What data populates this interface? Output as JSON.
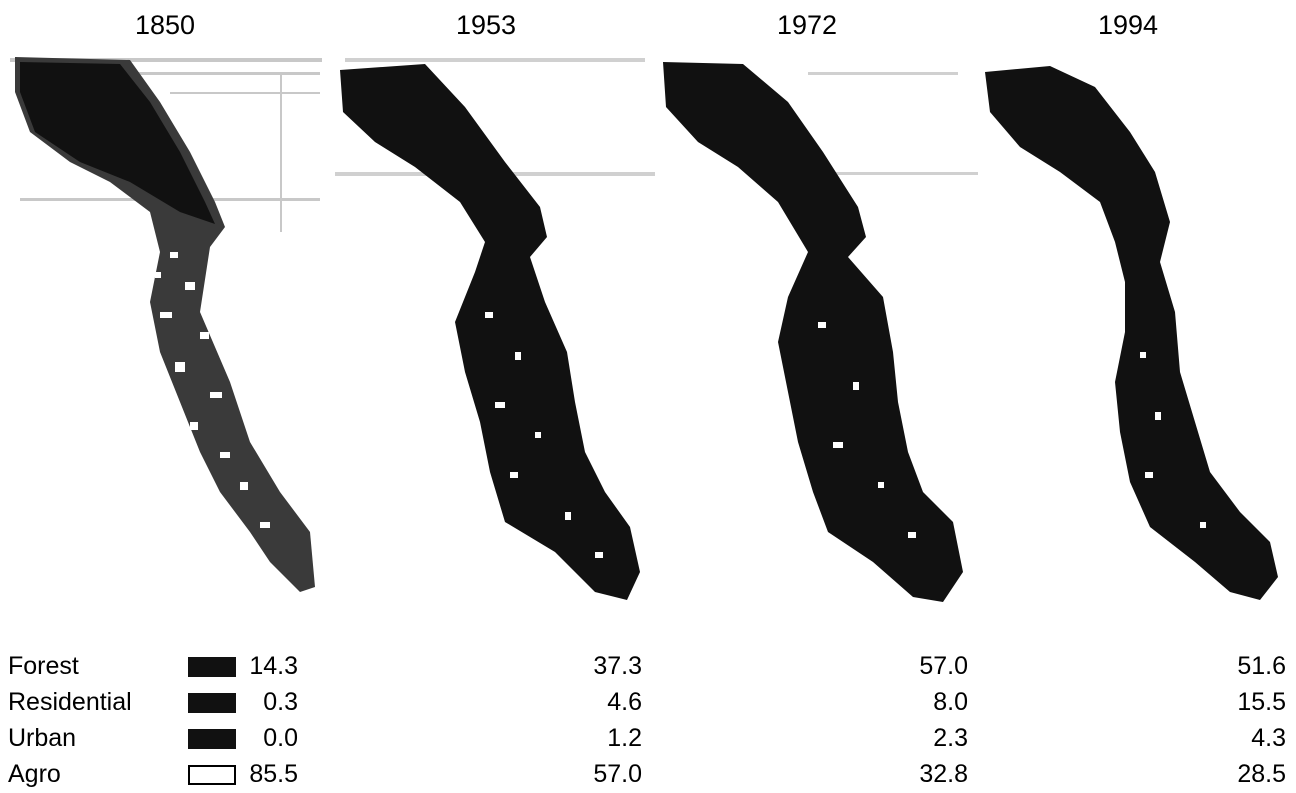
{
  "years": [
    "1850",
    "1953",
    "1972",
    "1994"
  ],
  "legend": [
    {
      "label": "Forest",
      "color": "#111111"
    },
    {
      "label": "Residential",
      "color": "#111111"
    },
    {
      "label": "Urban",
      "color": "#111111"
    },
    {
      "label": "Agro",
      "color": "#ffffff"
    }
  ],
  "values": [
    [
      "14.3",
      "37.3",
      "57.0",
      "51.6"
    ],
    [
      "0.3",
      "4.6",
      "8.0",
      "15.5"
    ],
    [
      "0.0",
      "1.2",
      "2.3",
      "4.3"
    ],
    [
      "85.5",
      "57.0",
      "32.8",
      "28.5"
    ]
  ]
}
